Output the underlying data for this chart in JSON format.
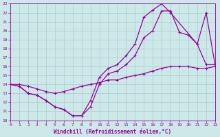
{
  "xlabel": "Windchill (Refroidissement éolien,°C)",
  "bg_color": "#cce8e8",
  "line_color": "#990099",
  "grid_color": "#aacccc",
  "xlim": [
    0,
    23
  ],
  "ylim": [
    10,
    23
  ],
  "xticks": [
    0,
    1,
    2,
    3,
    4,
    5,
    6,
    7,
    8,
    9,
    10,
    11,
    12,
    13,
    14,
    15,
    16,
    17,
    18,
    19,
    20,
    21,
    22,
    23
  ],
  "yticks": [
    10,
    11,
    12,
    13,
    14,
    15,
    16,
    17,
    18,
    19,
    20,
    21,
    22,
    23
  ],
  "curve_upper_x": [
    0,
    1,
    2,
    3,
    4,
    5,
    6,
    7,
    8,
    9,
    10,
    11,
    12,
    13,
    14,
    15,
    16,
    17,
    18,
    21,
    22,
    23
  ],
  "curve_upper_y": [
    14.0,
    13.8,
    13.0,
    12.8,
    12.2,
    11.5,
    11.2,
    10.5,
    10.5,
    12.2,
    14.8,
    15.8,
    16.2,
    17.2,
    18.5,
    21.5,
    22.3,
    23.0,
    22.0,
    18.5,
    22.0,
    16.2
  ],
  "curve_mid_x": [
    0,
    1,
    2,
    3,
    4,
    5,
    6,
    7,
    8,
    9,
    10,
    11,
    12,
    13,
    14,
    15,
    16,
    17,
    18,
    19,
    20,
    21,
    22,
    23
  ],
  "curve_mid_y": [
    14.0,
    13.8,
    13.0,
    12.8,
    12.2,
    11.5,
    11.2,
    10.5,
    10.5,
    11.5,
    14.0,
    15.2,
    15.5,
    16.2,
    17.2,
    19.2,
    20.0,
    22.2,
    22.2,
    19.8,
    19.5,
    18.5,
    16.2,
    16.2
  ],
  "curve_flat_x": [
    0,
    1,
    2,
    3,
    4,
    5,
    6,
    7,
    8,
    9,
    10,
    11,
    12,
    13,
    14,
    15,
    16,
    17,
    18,
    19,
    20,
    21,
    22,
    23
  ],
  "curve_flat_y": [
    14.0,
    14.0,
    13.8,
    13.5,
    13.2,
    13.0,
    13.2,
    13.5,
    13.8,
    14.0,
    14.2,
    14.5,
    14.5,
    14.8,
    15.0,
    15.2,
    15.5,
    15.8,
    16.0,
    16.0,
    16.0,
    15.8,
    15.8,
    16.0
  ],
  "lw": 0.9,
  "ms": 3.5
}
